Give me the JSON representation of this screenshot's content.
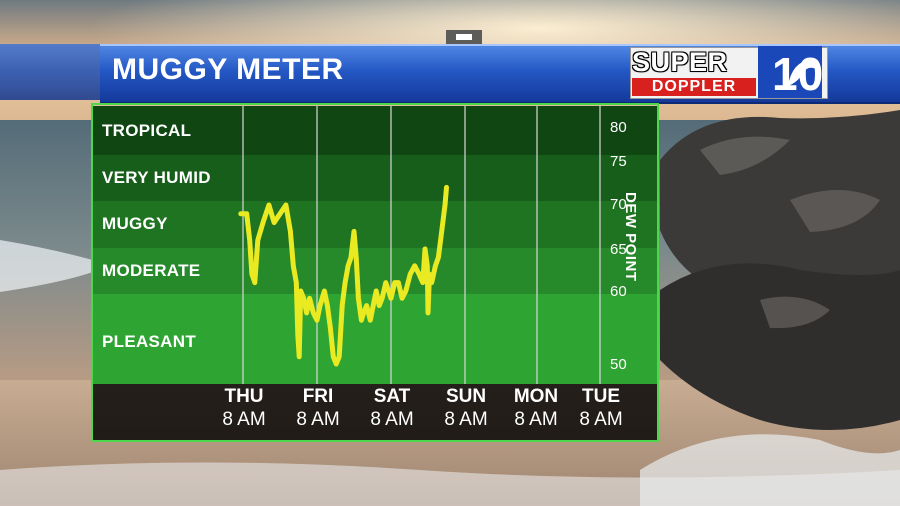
{
  "header": {
    "title": "MUGGY METER"
  },
  "logo": {
    "super": "SUPER",
    "doppler": "DOPPLER",
    "number": "10"
  },
  "colors": {
    "band_tropical": "#0f4612",
    "band_very_humid": "#175e1a",
    "band_muggy": "#1f7422",
    "band_moderate": "#26892a",
    "band_pleasant": "#2ea533",
    "line": "#eaea22",
    "frame": "#4cd84a",
    "title_bar": "#2457c4"
  },
  "chart_data": {
    "type": "line",
    "title": "MUGGY METER",
    "ylabel": "DEW POINT",
    "ylim": [
      47,
      82
    ],
    "y_ticks": [
      80,
      75,
      70,
      65,
      60,
      50
    ],
    "categories_comfort": [
      {
        "label": "TROPICAL"
      },
      {
        "label": "VERY HUMID"
      },
      {
        "label": "MUGGY"
      },
      {
        "label": "MODERATE"
      },
      {
        "label": "PLEASANT"
      }
    ],
    "x_ticks": [
      {
        "day": "THU",
        "time": "8 AM"
      },
      {
        "day": "FRI",
        "time": "8 AM"
      },
      {
        "day": "SAT",
        "time": "8 AM"
      },
      {
        "day": "SUN",
        "time": "8 AM"
      },
      {
        "day": "MON",
        "time": "8 AM"
      },
      {
        "day": "TUE",
        "time": "8 AM"
      }
    ],
    "series": [
      {
        "points": [
          [
            -0.03,
            69
          ],
          [
            0.05,
            69
          ],
          [
            0.09,
            66
          ],
          [
            0.12,
            62
          ],
          [
            0.16,
            61
          ],
          [
            0.2,
            66
          ],
          [
            0.27,
            68
          ],
          [
            0.35,
            70
          ],
          [
            0.42,
            68
          ],
          [
            0.5,
            69
          ],
          [
            0.58,
            70
          ],
          [
            0.64,
            67
          ],
          [
            0.68,
            63
          ],
          [
            0.72,
            61
          ],
          [
            0.74,
            54
          ],
          [
            0.76,
            51
          ],
          [
            0.78,
            60
          ],
          [
            0.82,
            59
          ],
          [
            0.86,
            57
          ],
          [
            0.9,
            59
          ],
          [
            0.95,
            57
          ],
          [
            1.0,
            56
          ],
          [
            1.04,
            58
          ],
          [
            1.1,
            60
          ],
          [
            1.14,
            58
          ],
          [
            1.18,
            55
          ],
          [
            1.22,
            51
          ],
          [
            1.26,
            50
          ],
          [
            1.3,
            51
          ],
          [
            1.34,
            58
          ],
          [
            1.38,
            61
          ],
          [
            1.42,
            63
          ],
          [
            1.46,
            64
          ],
          [
            1.5,
            67
          ],
          [
            1.53,
            64
          ],
          [
            1.56,
            59
          ],
          [
            1.6,
            56
          ],
          [
            1.63,
            57
          ],
          [
            1.67,
            58
          ],
          [
            1.72,
            56
          ],
          [
            1.76,
            58
          ],
          [
            1.8,
            60
          ],
          [
            1.84,
            58
          ],
          [
            1.88,
            59
          ],
          [
            1.93,
            61
          ],
          [
            2.0,
            59
          ],
          [
            2.05,
            61
          ],
          [
            2.1,
            61
          ],
          [
            2.15,
            59
          ],
          [
            2.2,
            60
          ],
          [
            2.26,
            62
          ],
          [
            2.32,
            63
          ],
          [
            2.38,
            62
          ],
          [
            2.43,
            61
          ],
          [
            2.46,
            65
          ],
          [
            2.49,
            63
          ],
          [
            2.5,
            57
          ],
          [
            2.52,
            62
          ],
          [
            2.55,
            61
          ],
          [
            2.6,
            63
          ],
          [
            2.64,
            64
          ],
          [
            2.67,
            66
          ],
          [
            2.7,
            68
          ],
          [
            2.73,
            70
          ],
          [
            2.75,
            72
          ]
        ]
      }
    ]
  }
}
